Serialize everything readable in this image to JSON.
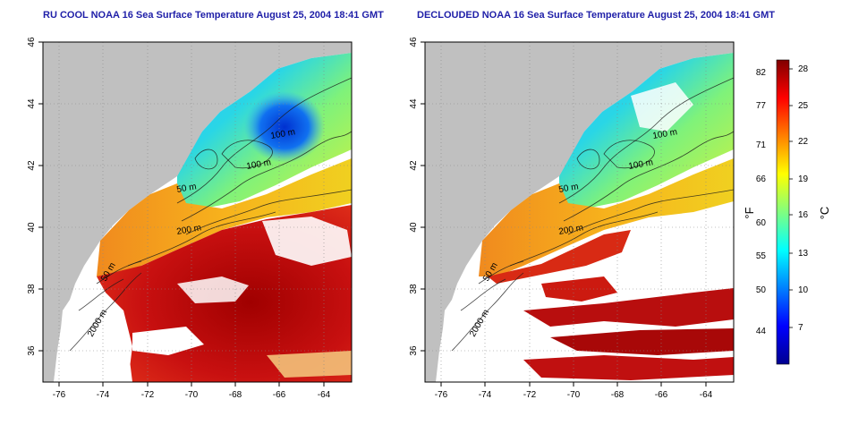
{
  "panels": [
    {
      "title": "RU COOL NOAA 16 Sea Surface Temperature August 25, 2004 18:41 GMT",
      "variant": "cloudy",
      "x_ticks": [
        "-76",
        "-74",
        "-72",
        "-70",
        "-68",
        "-66",
        "-64"
      ],
      "y_ticks": [
        "36",
        "38",
        "40",
        "42",
        "44",
        "46"
      ],
      "contour_labels": [
        "100 m",
        "100 m",
        "50 m",
        "200 m",
        "50 m",
        "2000 m"
      ]
    },
    {
      "title": "DECLOUDED NOAA 16 Sea Surface Temperature August 25, 2004 18:41 GMT",
      "variant": "declouded",
      "x_ticks": [
        "-76",
        "-74",
        "-72",
        "-70",
        "-68",
        "-66",
        "-64"
      ],
      "y_ticks": [
        "36",
        "38",
        "40",
        "42",
        "44",
        "46"
      ],
      "contour_labels": [
        "100 m",
        "100 m",
        "50 m",
        "200 m",
        "50 m",
        "2000 m"
      ]
    }
  ],
  "colorbar": {
    "f_label": "°F",
    "c_label": "°C",
    "f_ticks": [
      "82",
      "77",
      "71",
      "66",
      "60",
      "55",
      "50",
      "44"
    ],
    "c_ticks": [
      "28",
      "25",
      "22",
      "19",
      "16",
      "13",
      "10",
      "7"
    ],
    "gradient": [
      "#00008f",
      "#0000ff",
      "#0080ff",
      "#00ffff",
      "#80ff80",
      "#ffff00",
      "#ff8000",
      "#ff0000",
      "#800000"
    ]
  },
  "colors": {
    "land": "#c0c0c0",
    "cloud": "#ffffff",
    "title": "#1f1fa8",
    "contour": "#1a1a1a"
  }
}
